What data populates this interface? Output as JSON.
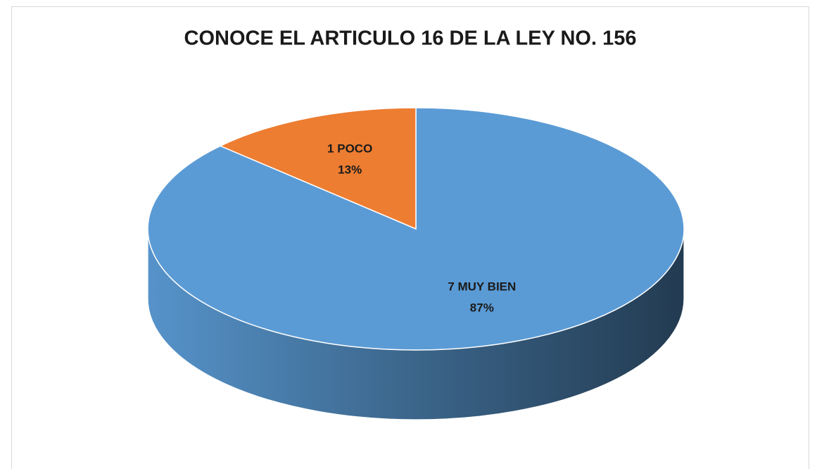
{
  "chart_data": {
    "type": "pie",
    "title": "CONOCE EL ARTICULO 16 DE LA LEY NO. 156",
    "categories": [
      "7 MUY BIEN",
      "1 POCO"
    ],
    "values": [
      87,
      13
    ],
    "value_labels": [
      "87%",
      "13%"
    ],
    "colors": [
      "#5b9bd5",
      "#ed7d31"
    ]
  }
}
